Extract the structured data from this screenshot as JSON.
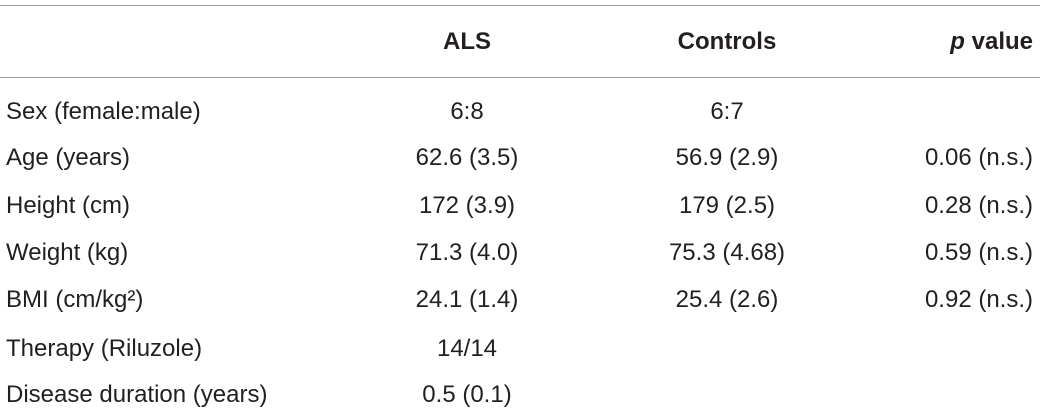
{
  "table": {
    "header": {
      "als": "ALS",
      "controls": "Controls",
      "p_italic": "p",
      "p_text": "value"
    },
    "rows": [
      {
        "label": "Sex (female:male)",
        "als": "6:8",
        "controls": "6:7"
      },
      {
        "label": "Age (years)",
        "als": "62.6 (3.5)",
        "controls": "56.9 (2.9)",
        "p": "0.06 (n.s.)"
      },
      {
        "label": "Height (cm)",
        "als": "172 (3.9)",
        "controls": "179 (2.5)",
        "p": "0.28 (n.s.)"
      },
      {
        "label": "Weight (kg)",
        "als": "71.3 (4.0)",
        "controls": "75.3 (4.68)",
        "p": "0.59 (n.s.)"
      },
      {
        "label": "BMI (cm/kg²)",
        "als": "24.1 (1.4)",
        "controls": "25.4 (2.6)",
        "p": "0.92 (n.s.)"
      },
      {
        "label": "Therapy (Riluzole)",
        "als": "14/14"
      },
      {
        "label": "Disease duration (years)",
        "als": "0.5 (0.1)"
      }
    ]
  }
}
